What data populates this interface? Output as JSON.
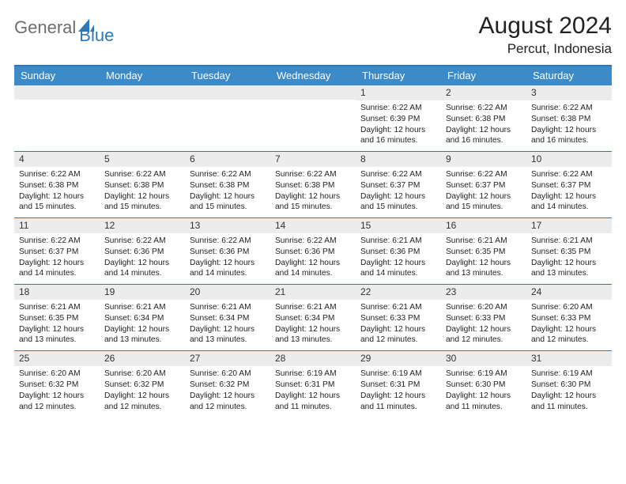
{
  "colors": {
    "header_bar": "#3d8ac9",
    "header_border": "#2e77b8",
    "daynum_bg": "#ececec",
    "text": "#222222",
    "logo_gray": "#6d6d6d",
    "logo_blue": "#2e77b8",
    "bg": "#ffffff"
  },
  "typography": {
    "title_fontsize": 30,
    "location_fontsize": 17,
    "weekday_fontsize": 13,
    "daynum_fontsize": 12,
    "body_fontsize": 10.2
  },
  "logo": {
    "part1": "General",
    "part2": "Blue"
  },
  "title": "August 2024",
  "location": "Percut, Indonesia",
  "weekdays": [
    "Sunday",
    "Monday",
    "Tuesday",
    "Wednesday",
    "Thursday",
    "Friday",
    "Saturday"
  ],
  "weeks": [
    [
      {
        "day": "",
        "sunrise": "",
        "sunset": "",
        "daylight": ""
      },
      {
        "day": "",
        "sunrise": "",
        "sunset": "",
        "daylight": ""
      },
      {
        "day": "",
        "sunrise": "",
        "sunset": "",
        "daylight": ""
      },
      {
        "day": "",
        "sunrise": "",
        "sunset": "",
        "daylight": ""
      },
      {
        "day": "1",
        "sunrise": "Sunrise: 6:22 AM",
        "sunset": "Sunset: 6:39 PM",
        "daylight": "Daylight: 12 hours and 16 minutes."
      },
      {
        "day": "2",
        "sunrise": "Sunrise: 6:22 AM",
        "sunset": "Sunset: 6:38 PM",
        "daylight": "Daylight: 12 hours and 16 minutes."
      },
      {
        "day": "3",
        "sunrise": "Sunrise: 6:22 AM",
        "sunset": "Sunset: 6:38 PM",
        "daylight": "Daylight: 12 hours and 16 minutes."
      }
    ],
    [
      {
        "day": "4",
        "sunrise": "Sunrise: 6:22 AM",
        "sunset": "Sunset: 6:38 PM",
        "daylight": "Daylight: 12 hours and 15 minutes."
      },
      {
        "day": "5",
        "sunrise": "Sunrise: 6:22 AM",
        "sunset": "Sunset: 6:38 PM",
        "daylight": "Daylight: 12 hours and 15 minutes."
      },
      {
        "day": "6",
        "sunrise": "Sunrise: 6:22 AM",
        "sunset": "Sunset: 6:38 PM",
        "daylight": "Daylight: 12 hours and 15 minutes."
      },
      {
        "day": "7",
        "sunrise": "Sunrise: 6:22 AM",
        "sunset": "Sunset: 6:38 PM",
        "daylight": "Daylight: 12 hours and 15 minutes."
      },
      {
        "day": "8",
        "sunrise": "Sunrise: 6:22 AM",
        "sunset": "Sunset: 6:37 PM",
        "daylight": "Daylight: 12 hours and 15 minutes."
      },
      {
        "day": "9",
        "sunrise": "Sunrise: 6:22 AM",
        "sunset": "Sunset: 6:37 PM",
        "daylight": "Daylight: 12 hours and 15 minutes."
      },
      {
        "day": "10",
        "sunrise": "Sunrise: 6:22 AM",
        "sunset": "Sunset: 6:37 PM",
        "daylight": "Daylight: 12 hours and 14 minutes."
      }
    ],
    [
      {
        "day": "11",
        "sunrise": "Sunrise: 6:22 AM",
        "sunset": "Sunset: 6:37 PM",
        "daylight": "Daylight: 12 hours and 14 minutes."
      },
      {
        "day": "12",
        "sunrise": "Sunrise: 6:22 AM",
        "sunset": "Sunset: 6:36 PM",
        "daylight": "Daylight: 12 hours and 14 minutes."
      },
      {
        "day": "13",
        "sunrise": "Sunrise: 6:22 AM",
        "sunset": "Sunset: 6:36 PM",
        "daylight": "Daylight: 12 hours and 14 minutes."
      },
      {
        "day": "14",
        "sunrise": "Sunrise: 6:22 AM",
        "sunset": "Sunset: 6:36 PM",
        "daylight": "Daylight: 12 hours and 14 minutes."
      },
      {
        "day": "15",
        "sunrise": "Sunrise: 6:21 AM",
        "sunset": "Sunset: 6:36 PM",
        "daylight": "Daylight: 12 hours and 14 minutes."
      },
      {
        "day": "16",
        "sunrise": "Sunrise: 6:21 AM",
        "sunset": "Sunset: 6:35 PM",
        "daylight": "Daylight: 12 hours and 13 minutes."
      },
      {
        "day": "17",
        "sunrise": "Sunrise: 6:21 AM",
        "sunset": "Sunset: 6:35 PM",
        "daylight": "Daylight: 12 hours and 13 minutes."
      }
    ],
    [
      {
        "day": "18",
        "sunrise": "Sunrise: 6:21 AM",
        "sunset": "Sunset: 6:35 PM",
        "daylight": "Daylight: 12 hours and 13 minutes."
      },
      {
        "day": "19",
        "sunrise": "Sunrise: 6:21 AM",
        "sunset": "Sunset: 6:34 PM",
        "daylight": "Daylight: 12 hours and 13 minutes."
      },
      {
        "day": "20",
        "sunrise": "Sunrise: 6:21 AM",
        "sunset": "Sunset: 6:34 PM",
        "daylight": "Daylight: 12 hours and 13 minutes."
      },
      {
        "day": "21",
        "sunrise": "Sunrise: 6:21 AM",
        "sunset": "Sunset: 6:34 PM",
        "daylight": "Daylight: 12 hours and 13 minutes."
      },
      {
        "day": "22",
        "sunrise": "Sunrise: 6:21 AM",
        "sunset": "Sunset: 6:33 PM",
        "daylight": "Daylight: 12 hours and 12 minutes."
      },
      {
        "day": "23",
        "sunrise": "Sunrise: 6:20 AM",
        "sunset": "Sunset: 6:33 PM",
        "daylight": "Daylight: 12 hours and 12 minutes."
      },
      {
        "day": "24",
        "sunrise": "Sunrise: 6:20 AM",
        "sunset": "Sunset: 6:33 PM",
        "daylight": "Daylight: 12 hours and 12 minutes."
      }
    ],
    [
      {
        "day": "25",
        "sunrise": "Sunrise: 6:20 AM",
        "sunset": "Sunset: 6:32 PM",
        "daylight": "Daylight: 12 hours and 12 minutes."
      },
      {
        "day": "26",
        "sunrise": "Sunrise: 6:20 AM",
        "sunset": "Sunset: 6:32 PM",
        "daylight": "Daylight: 12 hours and 12 minutes."
      },
      {
        "day": "27",
        "sunrise": "Sunrise: 6:20 AM",
        "sunset": "Sunset: 6:32 PM",
        "daylight": "Daylight: 12 hours and 12 minutes."
      },
      {
        "day": "28",
        "sunrise": "Sunrise: 6:19 AM",
        "sunset": "Sunset: 6:31 PM",
        "daylight": "Daylight: 12 hours and 11 minutes."
      },
      {
        "day": "29",
        "sunrise": "Sunrise: 6:19 AM",
        "sunset": "Sunset: 6:31 PM",
        "daylight": "Daylight: 12 hours and 11 minutes."
      },
      {
        "day": "30",
        "sunrise": "Sunrise: 6:19 AM",
        "sunset": "Sunset: 6:30 PM",
        "daylight": "Daylight: 12 hours and 11 minutes."
      },
      {
        "day": "31",
        "sunrise": "Sunrise: 6:19 AM",
        "sunset": "Sunset: 6:30 PM",
        "daylight": "Daylight: 12 hours and 11 minutes."
      }
    ]
  ]
}
